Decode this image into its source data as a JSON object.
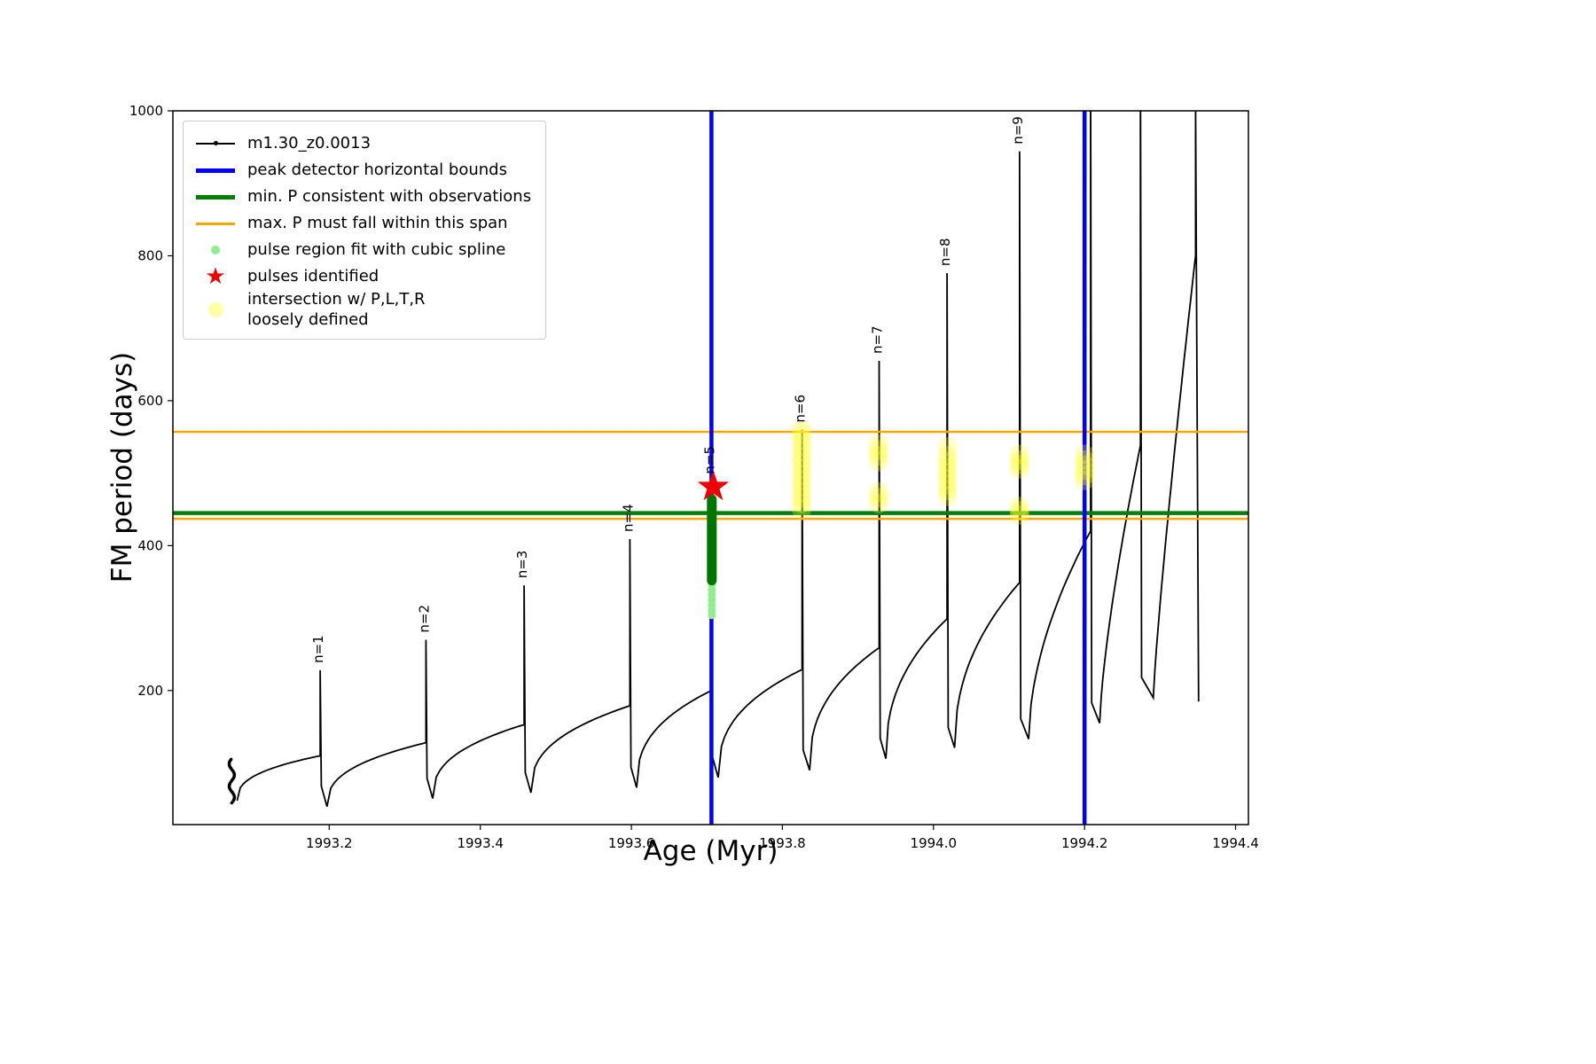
{
  "chart_data": {
    "type": "line",
    "title": "",
    "xlabel": "Age (Myr)",
    "ylabel": "FM period (days)",
    "xlim": [
      1992.993,
      1994.417
    ],
    "ylim": [
      15,
      1000
    ],
    "x_ticks": [
      1993.2,
      1993.4,
      1993.6,
      1993.8,
      1994.0,
      1994.2,
      1994.4
    ],
    "x_tick_labels": [
      "1993.2",
      "1993.4",
      "1993.6",
      "1993.8",
      "1994.0",
      "1994.2",
      "1994.4"
    ],
    "y_ticks": [
      200,
      400,
      600,
      800,
      1000
    ],
    "y_tick_labels": [
      "200",
      "400",
      "600",
      "800",
      "1000"
    ],
    "grid": false,
    "legend_position": "upper-left",
    "legend": [
      {
        "marker": "line-dot",
        "color": "#000000",
        "label": "m1.30_z0.0013"
      },
      {
        "marker": "thick-line",
        "color": "#0000ff",
        "label": "peak detector horizontal bounds"
      },
      {
        "marker": "thick-line",
        "color": "#008000",
        "label": "min. P consistent with observations"
      },
      {
        "marker": "line",
        "color": "#ffa500",
        "label": "max. P must fall within this span"
      },
      {
        "marker": "dot",
        "color": "#90ee90",
        "label": "pulse region fit with cubic spline"
      },
      {
        "marker": "star",
        "color": "#ee0000",
        "label": "pulses identified"
      },
      {
        "marker": "big-dot",
        "color": "#ffff88",
        "label": "intersection w/ P,L,T,R\nloosely defined"
      }
    ],
    "main_series": {
      "name": "m1.30_z0.0013",
      "color": "#000000",
      "initial_cluster": {
        "age": 1993.071,
        "p_min": 45,
        "p_max": 105
      },
      "cycles": [
        {
          "age_start": 1993.078,
          "p_start": 48,
          "age_peak": 1993.188,
          "p_plateau": 110,
          "p_peak": 228,
          "shape": 0.38,
          "label": "n=1"
        },
        {
          "age_start": 1993.197,
          "p_start": 40,
          "age_peak": 1993.328,
          "p_plateau": 128,
          "p_peak": 270,
          "shape": 0.38,
          "label": "n=2"
        },
        {
          "age_start": 1993.337,
          "p_start": 51,
          "age_peak": 1993.458,
          "p_plateau": 153,
          "p_peak": 345,
          "shape": 0.38,
          "label": "n=3"
        },
        {
          "age_start": 1993.467,
          "p_start": 59,
          "age_peak": 1993.598,
          "p_plateau": 179,
          "p_peak": 409,
          "shape": 0.38,
          "label": "n=4"
        },
        {
          "age_start": 1993.607,
          "p_start": 66,
          "age_peak": 1993.706,
          "p_plateau": 200,
          "p_peak": 489,
          "shape": 0.38,
          "label": "n=5"
        },
        {
          "age_start": 1993.715,
          "p_start": 80,
          "age_peak": 1993.826,
          "p_plateau": 229,
          "p_peak": 560,
          "shape": 0.38,
          "label": "n=6"
        },
        {
          "age_start": 1993.836,
          "p_start": 90,
          "age_peak": 1993.928,
          "p_plateau": 259,
          "p_peak": 655,
          "shape": 0.4,
          "label": "n=7"
        },
        {
          "age_start": 1993.937,
          "p_start": 106,
          "age_peak": 1994.018,
          "p_plateau": 299,
          "p_peak": 776,
          "shape": 0.42,
          "label": "n=8"
        },
        {
          "age_start": 1994.028,
          "p_start": 121,
          "age_peak": 1994.114,
          "p_plateau": 349,
          "p_peak": 944,
          "shape": 0.45,
          "label": "n=9"
        },
        {
          "age_start": 1994.126,
          "p_start": 133,
          "age_peak": 1994.208,
          "p_plateau": 420,
          "p_peak": 1075,
          "shape": 0.55,
          "label": ""
        },
        {
          "age_start": 1994.22,
          "p_start": 155,
          "age_peak": 1994.274,
          "p_plateau": 538,
          "p_peak": 1085,
          "shape": 0.72,
          "label": ""
        },
        {
          "age_start": 1994.291,
          "p_start": 190,
          "age_peak": 1994.347,
          "p_plateau": 800,
          "p_peak": 1005,
          "shape": 0.85,
          "label": ""
        }
      ],
      "final_drop": {
        "age": 1994.351,
        "p": 185
      }
    },
    "peak_detector_bounds": {
      "color": "#0000ff",
      "ages": [
        1993.706,
        1994.2
      ],
      "width": 4.5
    },
    "min_p_line": {
      "color": "#008000",
      "value": 445,
      "width": 4.5
    },
    "max_p_span": {
      "color": "#ffa500",
      "values": [
        437,
        557
      ],
      "width": 2.5
    },
    "pulse_region": {
      "age": 1993.7065,
      "light": {
        "color": "#90ee90",
        "p_min": 304,
        "p_max": 360,
        "count": 9,
        "radius": 4.5
      },
      "dark": {
        "color": "#007500",
        "p_min": 352,
        "p_max": 464,
        "count": 48,
        "radius": 5.5
      }
    },
    "pulses_identified": {
      "color": "#ee0000",
      "points": [
        {
          "age": 1993.7085,
          "period": 481
        }
      ]
    },
    "intersections": {
      "color": "#ffff33",
      "opacity": 0.28,
      "radius": 11,
      "groups": [
        {
          "age": 1993.8255,
          "p_values": [
            450,
            458,
            466,
            474,
            482,
            490,
            498,
            506,
            514,
            522,
            530,
            538,
            546,
            554,
            560
          ]
        },
        {
          "age": 1993.9275,
          "p_values": [
            458,
            466,
            474,
            516,
            524,
            532,
            540
          ]
        },
        {
          "age": 1994.0185,
          "p_values": [
            468,
            476,
            484,
            492,
            500,
            508,
            516,
            524,
            536
          ]
        },
        {
          "age": 1994.114,
          "p_values": [
            442,
            448,
            454,
            506,
            512,
            518,
            526
          ]
        },
        {
          "age": 1994.2,
          "p_values": [
            490,
            497,
            504,
            511,
            518,
            526
          ]
        }
      ]
    }
  }
}
